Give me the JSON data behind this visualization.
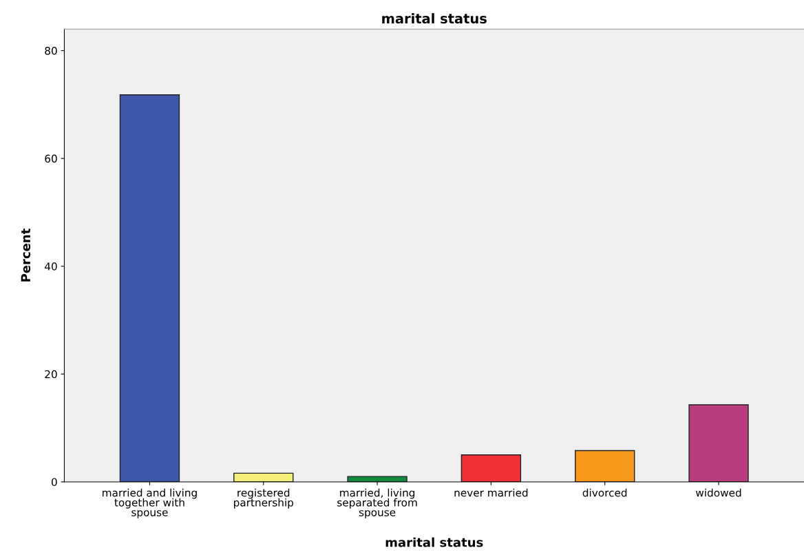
{
  "chart_data": {
    "type": "bar",
    "title": "marital status",
    "xlabel": "marital status",
    "ylabel": "Percent",
    "categories": [
      "married and living\ntogether with\nspouse",
      "registered\npartnership",
      "married, living\nseparated from\nspouse",
      "never married",
      "divorced",
      "widowed"
    ],
    "values": [
      71.8,
      1.6,
      1.0,
      5.0,
      5.8,
      14.3
    ],
    "colors": [
      "#3d58a8",
      "#f5f07a",
      "#128a3c",
      "#f03238",
      "#f8991e",
      "#b73d7c"
    ],
    "ylim": [
      0,
      84
    ],
    "yticks": [
      0,
      20,
      40,
      60,
      80
    ],
    "grid": false,
    "legend": false
  }
}
